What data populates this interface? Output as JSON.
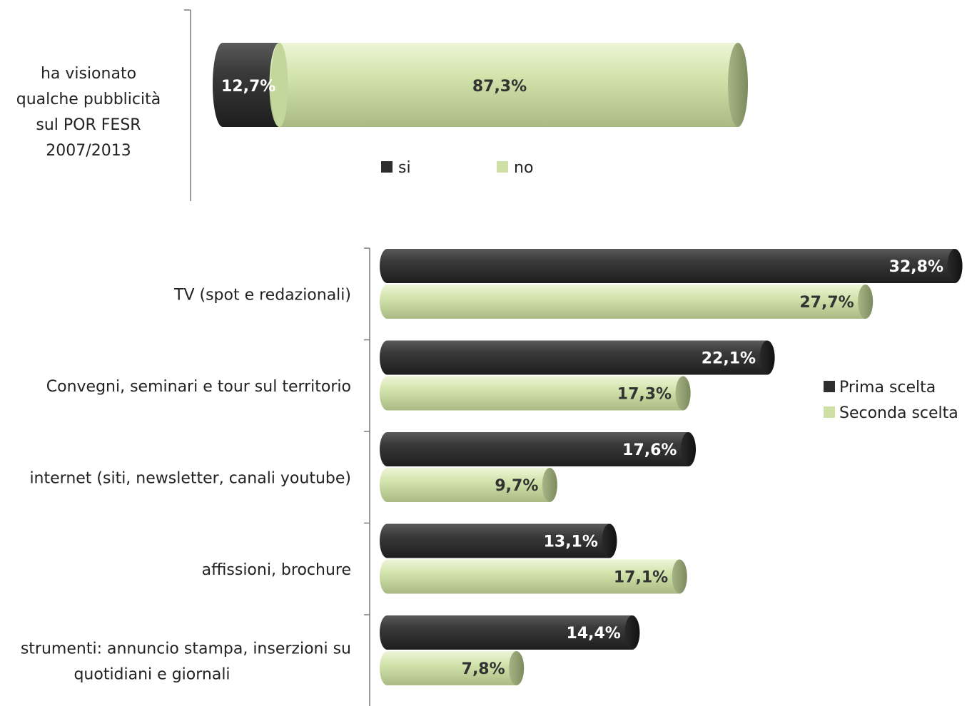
{
  "colors": {
    "dark": "#2e2e2e",
    "dark_end": "#1c1c1c",
    "light": "#cfe0a6",
    "light_end": "#8c9a6f"
  },
  "chart_data": [
    {
      "type": "bar",
      "orientation": "horizontal",
      "stacked": true,
      "categories": [
        "ha visionato qualche pubblicità sul POR FESR 2007/2013"
      ],
      "category_lines": [
        [
          "ha visionato",
          "qualche pubblicità",
          "sul POR FESR",
          "2007/2013"
        ]
      ],
      "series": [
        {
          "name": "si",
          "values": [
            12.7
          ],
          "labels": [
            "12,7%"
          ]
        },
        {
          "name": "no",
          "values": [
            87.3
          ],
          "labels": [
            "87,3%"
          ]
        }
      ],
      "xlim": [
        0,
        100
      ],
      "legend": "bottom",
      "grid": false
    },
    {
      "type": "bar",
      "orientation": "horizontal",
      "stacked": false,
      "categories": [
        "TV (spot e redazionali)",
        "Convegni, seminari e tour sul territorio",
        "internet (siti, newsletter, canali youtube)",
        "affissioni, brochure",
        "strumenti: annuncio stampa, inserzioni su quotidiani e giornali"
      ],
      "category_lines": [
        [
          "TV (spot e redazionali)"
        ],
        [
          "Convegni, seminari e tour sul territorio"
        ],
        [
          "internet (siti, newsletter, canali youtube)"
        ],
        [
          "affissioni, brochure"
        ],
        [
          "strumenti: annuncio stampa, inserzioni su",
          "quotidiani e giornali"
        ]
      ],
      "series": [
        {
          "name": "Prima scelta",
          "values": [
            32.8,
            22.1,
            17.6,
            13.1,
            14.4
          ],
          "labels": [
            "32,8%",
            "22,1%",
            "17,6%",
            "13,1%",
            "14,4%"
          ]
        },
        {
          "name": "Seconda scelta",
          "values": [
            27.7,
            17.3,
            9.7,
            17.1,
            7.8
          ],
          "labels": [
            "27,7%",
            "17,3%",
            "9,7%",
            "17,1%",
            "7,8%"
          ]
        }
      ],
      "xlim": [
        0,
        33
      ],
      "legend": "right",
      "grid": false
    }
  ]
}
